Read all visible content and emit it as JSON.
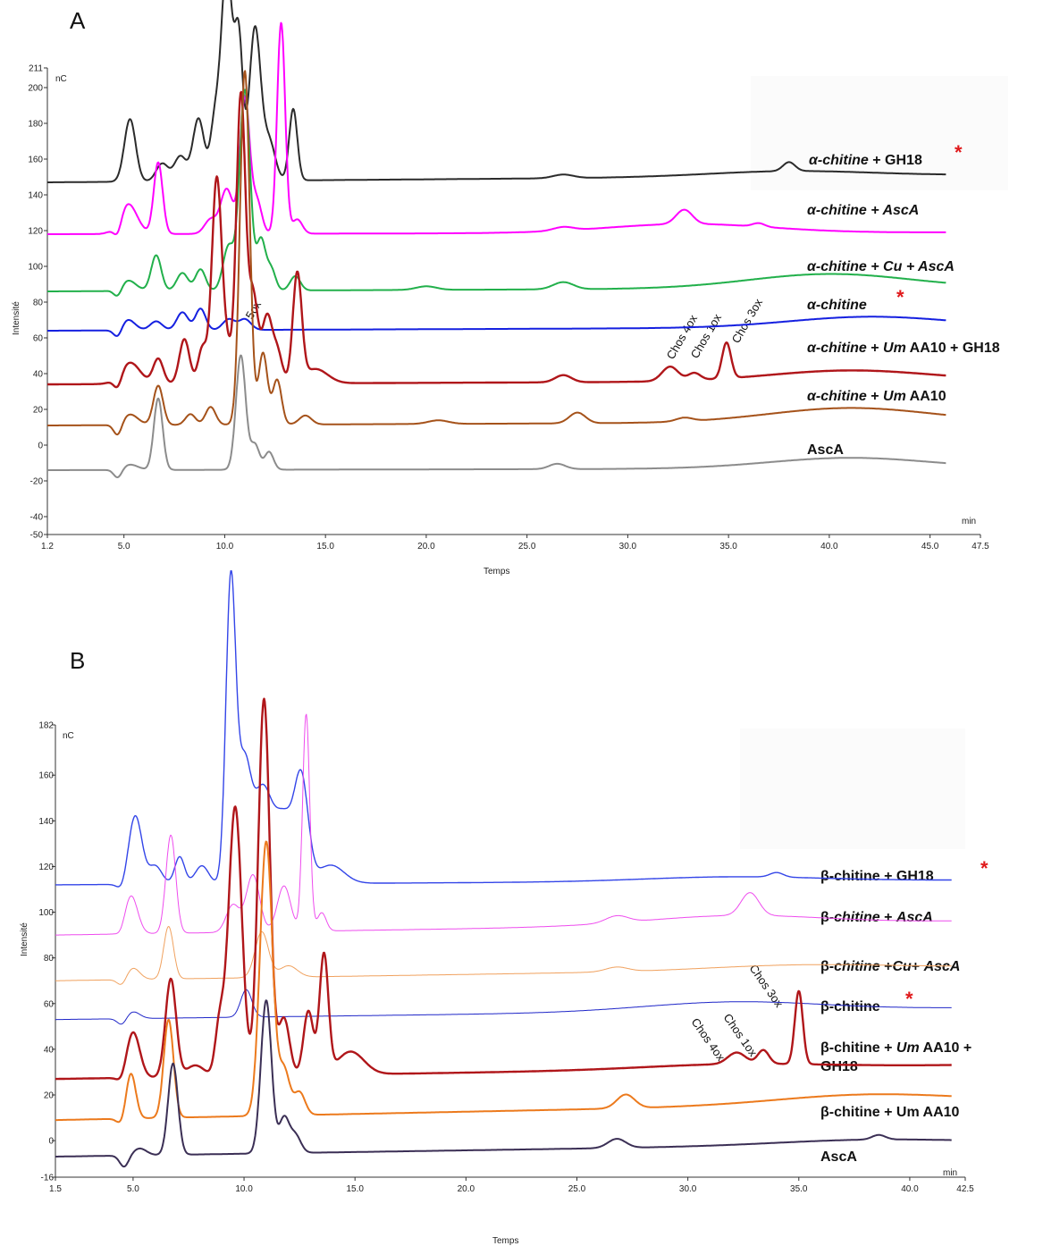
{
  "chart_data": [
    {
      "type": "line",
      "panel": "A",
      "xlabel": "Temps",
      "ylabel": "Intensité",
      "x_unit": "min",
      "y_unit": "nC",
      "xlim": [
        1.2,
        47.5
      ],
      "ylim": [
        -50,
        211
      ],
      "x_ticks": [
        "1.2",
        "5.0",
        "10.0",
        "15.0",
        "20.0",
        "25.0",
        "30.0",
        "35.0",
        "40.0",
        "45.0",
        "47.5"
      ],
      "y_ticks": [
        "211",
        "200",
        "180",
        "160",
        "140",
        "120",
        "100",
        "80",
        "60",
        "40",
        "20",
        "0",
        "-20",
        "-40",
        "-50"
      ],
      "series": [
        {
          "name": "α-chitine + GH18",
          "star": true,
          "color": "#2b2b2b",
          "base": 147,
          "end": 151,
          "drift": [
            [
              38,
              3
            ]
          ],
          "peaks": [
            [
              5.3,
              35,
              0.28
            ],
            [
              6.9,
              10,
              0.3
            ],
            [
              7.8,
              14,
              0.3
            ],
            [
              8.7,
              35,
              0.28
            ],
            [
              9.5,
              30,
              0.22
            ],
            [
              10.1,
              120,
              0.28
            ],
            [
              10.7,
              75,
              0.2
            ],
            [
              11.5,
              85,
              0.28
            ],
            [
              12.2,
              22,
              0.3
            ],
            [
              13.4,
              40,
              0.2
            ],
            [
              26.8,
              2,
              0.5
            ],
            [
              38.0,
              5,
              0.3
            ]
          ]
        },
        {
          "name": "α-chitine + AscA",
          "color": "#ff00ff",
          "base": 118,
          "end": 119,
          "drift": [
            [
              33,
              5
            ]
          ],
          "peaks": [
            [
              4.7,
              -8,
              0.2
            ],
            [
              5.2,
              17,
              0.45
            ],
            [
              6.7,
              40,
              0.22
            ],
            [
              9.3,
              8,
              0.3
            ],
            [
              10.1,
              25,
              0.3
            ],
            [
              11.0,
              76,
              0.24
            ],
            [
              11.6,
              18,
              0.24
            ],
            [
              12.8,
              118,
              0.2
            ],
            [
              13.6,
              8,
              0.25
            ],
            [
              26.8,
              2,
              0.5
            ],
            [
              32.8,
              8,
              0.4
            ],
            [
              36.5,
              2,
              0.3
            ]
          ]
        },
        {
          "name": "α-chitine + Cu + AscA",
          "color": "#22b04b",
          "base": 86,
          "end": 88,
          "drift": [
            [
              40,
              8
            ]
          ],
          "peaks": [
            [
              4.7,
              -5,
              0.2
            ],
            [
              5.2,
              6,
              0.4
            ],
            [
              6.6,
              20,
              0.25
            ],
            [
              7.9,
              10,
              0.28
            ],
            [
              8.8,
              12,
              0.25
            ],
            [
              10.2,
              25,
              0.28
            ],
            [
              11.0,
              112,
              0.26
            ],
            [
              11.8,
              28,
              0.22
            ],
            [
              12.3,
              12,
              0.22
            ],
            [
              13.5,
              8,
              0.25
            ],
            [
              20.0,
              2,
              0.5
            ],
            [
              26.8,
              4,
              0.5
            ]
          ]
        },
        {
          "name": "α-chitine",
          "star": true,
          "color": "#1520e0",
          "base": 64,
          "end": 66,
          "drift": [
            [
              42,
              6
            ]
          ],
          "peaks": [
            [
              4.7,
              -5,
              0.2
            ],
            [
              5.2,
              6,
              0.35
            ],
            [
              6.6,
              5,
              0.3
            ],
            [
              7.9,
              10,
              0.28
            ],
            [
              8.8,
              12,
              0.25
            ],
            [
              10.2,
              6,
              0.3
            ],
            [
              11.0,
              6,
              0.3
            ]
          ]
        },
        {
          "name": "α-chitine + Um AA10 + GH18",
          "color": "#b0161a",
          "base": 34,
          "end": 36,
          "drift": [
            [
              41,
              6
            ]
          ],
          "peaks": [
            [
              4.7,
              -7,
              0.2
            ],
            [
              5.3,
              12,
              0.5
            ],
            [
              6.7,
              14,
              0.25
            ],
            [
              8.0,
              25,
              0.25
            ],
            [
              8.9,
              20,
              0.22
            ],
            [
              9.6,
              113,
              0.24
            ],
            [
              10.1,
              20,
              0.25
            ],
            [
              10.8,
              160,
              0.22
            ],
            [
              11.4,
              50,
              0.25
            ],
            [
              12.1,
              36,
              0.24
            ],
            [
              12.6,
              18,
              0.24
            ],
            [
              13.6,
              60,
              0.22
            ],
            [
              14.5,
              8,
              0.6
            ],
            [
              26.8,
              4,
              0.4
            ],
            [
              32.1,
              8,
              0.4
            ],
            [
              33.3,
              4,
              0.3
            ],
            [
              34.9,
              20,
              0.22
            ]
          ]
        },
        {
          "name": "α-chitine + Um AA10",
          "color": "#a5521a",
          "base": 11,
          "end": 13,
          "drift": [
            [
              41,
              8
            ]
          ],
          "peaks": [
            [
              4.7,
              -7,
              0.2
            ],
            [
              5.3,
              6,
              0.4
            ],
            [
              6.7,
              22,
              0.24
            ],
            [
              8.3,
              6,
              0.25
            ],
            [
              9.3,
              10,
              0.25
            ],
            [
              11.0,
              198,
              0.24
            ],
            [
              11.9,
              40,
              0.22
            ],
            [
              12.6,
              25,
              0.22
            ],
            [
              14.0,
              5,
              0.3
            ],
            [
              20.6,
              2,
              0.5
            ],
            [
              27.5,
              6,
              0.4
            ],
            [
              32.8,
              2,
              0.4
            ]
          ]
        },
        {
          "name": "AscA",
          "color": "#8c8c8c",
          "base": -14,
          "end": -13,
          "drift": [
            [
              41,
              6
            ]
          ],
          "peaks": [
            [
              4.7,
              -5,
              0.2
            ],
            [
              5.3,
              3,
              0.4
            ],
            [
              6.7,
              40,
              0.22
            ],
            [
              10.8,
              64,
              0.24
            ],
            [
              11.5,
              14,
              0.22
            ],
            [
              12.2,
              10,
              0.22
            ],
            [
              26.5,
              3,
              0.4
            ]
          ]
        }
      ],
      "annotations": [
        "5ox",
        "Chos 4ox",
        "Chos 1ox",
        "Chos 3ox"
      ]
    },
    {
      "type": "line",
      "panel": "B",
      "xlabel": "Temps",
      "ylabel": "Intensité",
      "x_unit": "min",
      "y_unit": "nC",
      "xlim": [
        1.5,
        42.5
      ],
      "ylim": [
        -16,
        182
      ],
      "x_ticks": [
        "1.5",
        "5.0",
        "10.0",
        "15.0",
        "20.0",
        "25.0",
        "30.0",
        "35.0",
        "40.0",
        "42.5"
      ],
      "y_ticks": [
        "182",
        "160",
        "140",
        "120",
        "100",
        "80",
        "60",
        "40",
        "20",
        "0",
        "-16"
      ],
      "series": [
        {
          "name": "β-chitine + GH18",
          "star": true,
          "color": "#3345e8",
          "base": 112,
          "end": 114,
          "drift": [
            [
              32,
              2
            ]
          ],
          "peaks": [
            [
              4.5,
              -3,
              0.2
            ],
            [
              5.1,
              30,
              0.3
            ],
            [
              6.0,
              8,
              0.3
            ],
            [
              7.1,
              12,
              0.22
            ],
            [
              8.1,
              8,
              0.3
            ],
            [
              9.4,
              130,
              0.22
            ],
            [
              10.0,
              50,
              0.3
            ],
            [
              10.8,
              38,
              0.4
            ],
            [
              11.8,
              30,
              0.5
            ],
            [
              12.6,
              40,
              0.3
            ],
            [
              13.9,
              8,
              0.6
            ],
            [
              34.0,
              2,
              0.3
            ]
          ]
        },
        {
          "name": "β-chitine + AscA",
          "color": "#ee4cee",
          "base": 90,
          "end": 96,
          "drift": [
            [
              32,
              4
            ]
          ],
          "peaks": [
            [
              4.5,
              -3,
              0.2
            ],
            [
              4.9,
              17,
              0.3
            ],
            [
              6.7,
              43,
              0.22
            ],
            [
              9.5,
              12,
              0.3
            ],
            [
              10.4,
              25,
              0.3
            ],
            [
              11.8,
              20,
              0.3
            ],
            [
              12.8,
              95,
              0.16
            ],
            [
              13.5,
              8,
              0.2
            ],
            [
              26.8,
              3,
              0.5
            ],
            [
              32.8,
              10,
              0.4
            ]
          ]
        },
        {
          "name": "β-chitine +Cu+ AscA",
          "color": "#f0a15e",
          "base": 70,
          "end": 76,
          "drift": [
            [
              35,
              2
            ]
          ],
          "peaks": [
            [
              4.5,
              -3,
              0.2
            ],
            [
              5.0,
              5,
              0.3
            ],
            [
              6.6,
              23,
              0.22
            ],
            [
              10.8,
              20,
              0.3
            ],
            [
              12.0,
              5,
              0.4
            ],
            [
              26.8,
              2,
              0.5
            ]
          ]
        },
        {
          "name": "β-chitine",
          "star": true,
          "color": "#1f26c8",
          "base": 53,
          "end": 58,
          "drift": [
            [
              32,
              4
            ]
          ],
          "peaks": [
            [
              4.5,
              -3,
              0.2
            ],
            [
              5.0,
              3,
              0.3
            ],
            [
              10.1,
              12,
              0.25
            ]
          ]
        },
        {
          "name": "β-chitine + Um AA10 + GH18",
          "color": "#b0161a",
          "base": 27,
          "end": 33,
          "drift": [
            [
              32,
              2
            ]
          ],
          "peaks": [
            [
              4.5,
              -3,
              0.2
            ],
            [
              5.0,
              20,
              0.3
            ],
            [
              6.7,
              43,
              0.24
            ],
            [
              7.8,
              5,
              0.4
            ],
            [
              8.9,
              22,
              0.2
            ],
            [
              9.6,
              118,
              0.3
            ],
            [
              10.9,
              165,
              0.26
            ],
            [
              11.8,
              25,
              0.25
            ],
            [
              12.9,
              28,
              0.22
            ],
            [
              13.6,
              52,
              0.2
            ],
            [
              14.8,
              10,
              0.6
            ],
            [
              32.2,
              5,
              0.4
            ],
            [
              33.4,
              6,
              0.25
            ],
            [
              35.0,
              32,
              0.18
            ]
          ]
        },
        {
          "name": "β-chitine + Um AA10",
          "color": "#ec7a1d",
          "base": 9,
          "end": 17,
          "drift": [
            [
              38,
              4
            ]
          ],
          "peaks": [
            [
              4.5,
              -3,
              0.2
            ],
            [
              4.9,
              20,
              0.22
            ],
            [
              6.6,
              43,
              0.22
            ],
            [
              11.0,
              120,
              0.28
            ],
            [
              11.8,
              20,
              0.25
            ],
            [
              12.5,
              10,
              0.25
            ],
            [
              27.2,
              6,
              0.4
            ]
          ]
        },
        {
          "name": "AscA",
          "color": "#3b2f55",
          "base": -7,
          "end": -1,
          "drift": [
            [
              38,
              2
            ]
          ],
          "peaks": [
            [
              4.6,
              -5,
              0.2
            ],
            [
              5.3,
              3,
              0.3
            ],
            [
              6.8,
              40,
              0.22
            ],
            [
              11.0,
              67,
              0.24
            ],
            [
              11.8,
              15,
              0.22
            ],
            [
              12.3,
              8,
              0.25
            ],
            [
              26.8,
              4,
              0.4
            ],
            [
              38.6,
              2,
              0.3
            ]
          ]
        }
      ],
      "annotations": [
        "Chos 4ox",
        "Chos 1ox",
        "Chos 3ox"
      ]
    }
  ],
  "panels": {
    "A": {
      "letter": "A",
      "x_unit": "min",
      "y_unit": "nC",
      "xlabel": "Temps",
      "ylabel": "Intensité",
      "star": "*",
      "labels": [
        "α-chitine + GH18",
        "α-chitine + AscA",
        "α-chitine + Cu + AscA",
        "α-chitine",
        "α-chitine + Um AA10 + GH18",
        "α-chitine + Um AA10",
        "AscA"
      ]
    },
    "B": {
      "letter": "B",
      "x_unit": "min",
      "y_unit": "nC",
      "xlabel": "Temps",
      "ylabel": "Intensité",
      "star": "*",
      "labels": [
        "β-chitine + GH18",
        "β-chitine + AscA",
        "β-chitine +Cu+ AscA",
        "β-chitine",
        "β-chitine + Um AA10 + GH18",
        "β-chitine + Um AA10",
        "AscA"
      ]
    }
  }
}
